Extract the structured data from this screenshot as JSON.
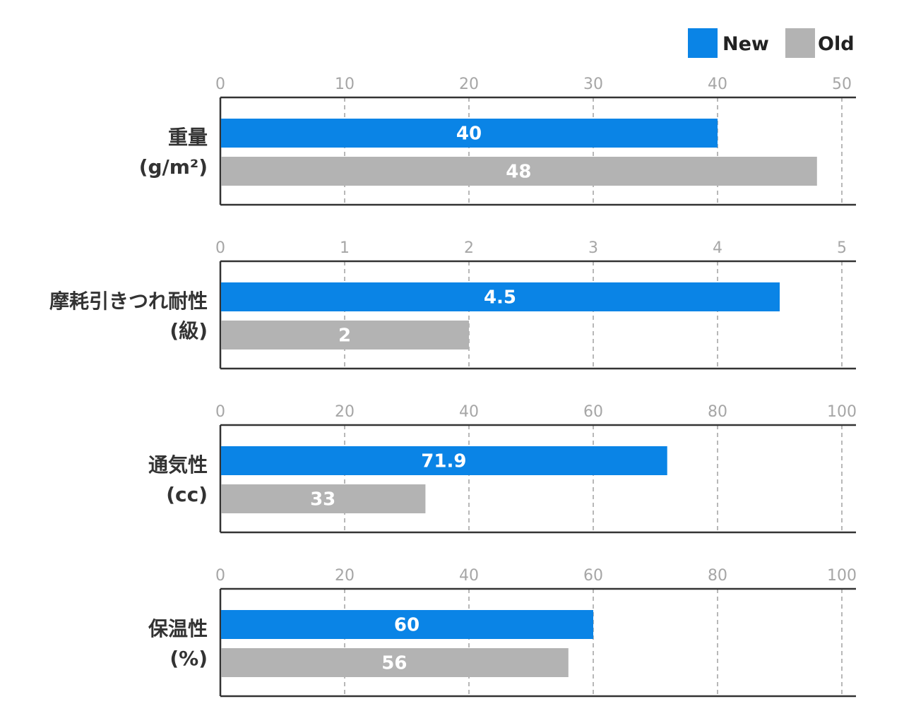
{
  "chart_data": {
    "type": "bar",
    "orientation": "horizontal",
    "legend": {
      "placement": "top-right",
      "items": [
        {
          "name": "New",
          "color": "#0a84e6"
        },
        {
          "name": "Old",
          "color": "#b3b3b3"
        }
      ]
    },
    "grid": true,
    "panels": [
      {
        "label_lines": [
          "重量",
          "(g/m²)"
        ],
        "xlim": [
          0,
          50
        ],
        "ticks": [
          0,
          10,
          20,
          30,
          40,
          50
        ],
        "series": [
          {
            "name": "New",
            "value": 40,
            "label": "40"
          },
          {
            "name": "Old",
            "value": 48,
            "label": "48"
          }
        ]
      },
      {
        "label_lines": [
          "摩耗引きつれ耐性",
          "(級)"
        ],
        "xlim": [
          0,
          5
        ],
        "ticks": [
          0,
          1,
          2,
          3,
          4,
          5
        ],
        "series": [
          {
            "name": "New",
            "value": 4.5,
            "label": "4.5"
          },
          {
            "name": "Old",
            "value": 2,
            "label": "2"
          }
        ]
      },
      {
        "label_lines": [
          "通気性",
          "(cc)"
        ],
        "xlim": [
          0,
          100
        ],
        "ticks": [
          0,
          20,
          40,
          60,
          80,
          100
        ],
        "series": [
          {
            "name": "New",
            "value": 71.9,
            "label": "71.9"
          },
          {
            "name": "Old",
            "value": 33,
            "label": "33"
          }
        ]
      },
      {
        "label_lines": [
          "保温性",
          "(%)"
        ],
        "xlim": [
          0,
          100
        ],
        "ticks": [
          0,
          20,
          40,
          60,
          80,
          100
        ],
        "series": [
          {
            "name": "New",
            "value": 60,
            "label": "60"
          },
          {
            "name": "Old",
            "value": 56,
            "label": "56"
          }
        ]
      }
    ]
  }
}
